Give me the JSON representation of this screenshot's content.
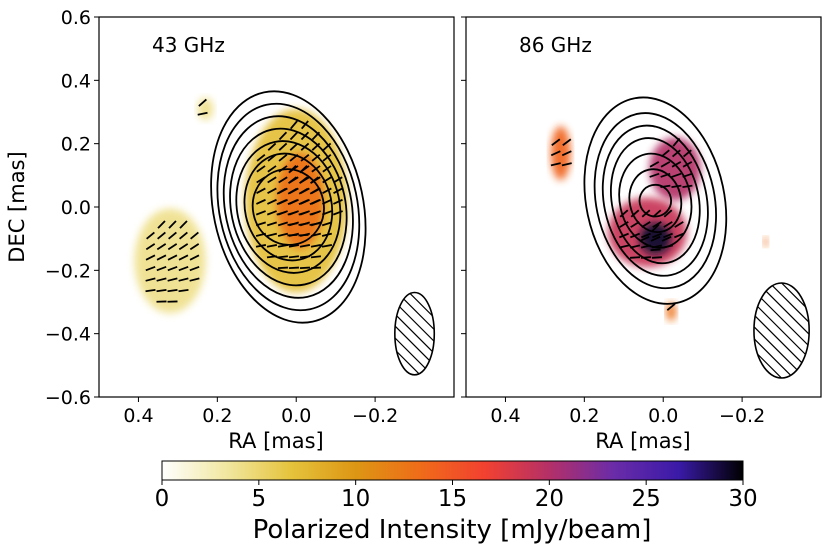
{
  "chart_data": {
    "type": "heatmap",
    "ylabel": "DEC [mas]",
    "xlabel": "RA [mas]",
    "ylim": [
      -0.6,
      0.6
    ],
    "xlim": [
      0.5,
      -0.4
    ],
    "x_ticks": [
      0.4,
      0.2,
      0.0,
      -0.2
    ],
    "x_tick_labels": [
      "0.4",
      "0.2",
      "0.0",
      "−0.2"
    ],
    "y_ticks": [
      0.6,
      0.4,
      0.2,
      0.0,
      -0.2,
      -0.4,
      -0.6
    ],
    "y_tick_labels": [
      "0.6",
      "0.4",
      "0.2",
      "0.0",
      "−0.2",
      "−0.4",
      "−0.6"
    ],
    "grid": false,
    "panels": [
      {
        "label": "43 GHz",
        "beam": {
          "ra": -0.3,
          "dec": -0.4,
          "semi_major": 0.13,
          "semi_minor": 0.05
        },
        "contours": {
          "center_ra": 0.02,
          "center_dec": 0.0,
          "levels": [
            {
              "a": 0.09,
              "b": 0.12
            },
            {
              "a": 0.11,
              "b": 0.17
            },
            {
              "a": 0.13,
              "b": 0.21
            },
            {
              "a": 0.145,
              "b": 0.25
            },
            {
              "a": 0.16,
              "b": 0.29
            },
            {
              "a": 0.175,
              "b": 0.33
            },
            {
              "a": 0.19,
              "b": 0.37
            }
          ]
        },
        "polarized_regions": [
          {
            "ra": 0.0,
            "dec": 0.02,
            "w": 0.26,
            "h": 0.58,
            "intensity": 7
          },
          {
            "ra": -0.01,
            "dec": 0.02,
            "w": 0.12,
            "h": 0.3,
            "intensity": 13
          },
          {
            "ra": 0.32,
            "dec": -0.17,
            "w": 0.18,
            "h": 0.33,
            "intensity": 4
          },
          {
            "ra": 0.23,
            "dec": 0.31,
            "w": 0.04,
            "h": 0.07,
            "intensity": 4
          }
        ]
      },
      {
        "label": "86 GHz",
        "beam": {
          "ra": -0.3,
          "dec": -0.39,
          "semi_major": 0.15,
          "semi_minor": 0.07
        },
        "contours": {
          "center_ra": 0.02,
          "center_dec": 0.02,
          "levels": [
            {
              "a": 0.04,
              "b": 0.05
            },
            {
              "a": 0.065,
              "b": 0.1
            },
            {
              "a": 0.09,
              "b": 0.15
            },
            {
              "a": 0.11,
              "b": 0.2
            },
            {
              "a": 0.13,
              "b": 0.24
            },
            {
              "a": 0.15,
              "b": 0.28
            },
            {
              "a": 0.175,
              "b": 0.33
            }
          ]
        },
        "polarized_regions": [
          {
            "ra": -0.03,
            "dec": 0.12,
            "w": 0.13,
            "h": 0.2,
            "intensity": 20
          },
          {
            "ra": 0.04,
            "dec": -0.08,
            "w": 0.2,
            "h": 0.22,
            "intensity": 19
          },
          {
            "ra": 0.02,
            "dec": -0.1,
            "w": 0.08,
            "h": 0.1,
            "intensity": 29
          },
          {
            "ra": 0.26,
            "dec": 0.17,
            "w": 0.05,
            "h": 0.17,
            "intensity": 14
          },
          {
            "ra": -0.02,
            "dec": -0.33,
            "w": 0.025,
            "h": 0.06,
            "intensity": 13
          },
          {
            "ra": -0.26,
            "dec": -0.11,
            "w": 0.012,
            "h": 0.03,
            "intensity": 13
          }
        ]
      }
    ],
    "colorbar": {
      "label": "Polarized Intensity [mJy/beam]",
      "range": [
        0,
        30
      ],
      "ticks": [
        0,
        5,
        10,
        15,
        20,
        25,
        30
      ],
      "tick_labels": [
        "0",
        "5",
        "10",
        "15",
        "20",
        "25",
        "30"
      ],
      "colormap": [
        "#ffffff",
        "#f1e7a0",
        "#e5c33c",
        "#dd9614",
        "#ef6c19",
        "#f24130",
        "#b43068",
        "#6a2ca8",
        "#3a1aa8",
        "#000000"
      ]
    }
  }
}
